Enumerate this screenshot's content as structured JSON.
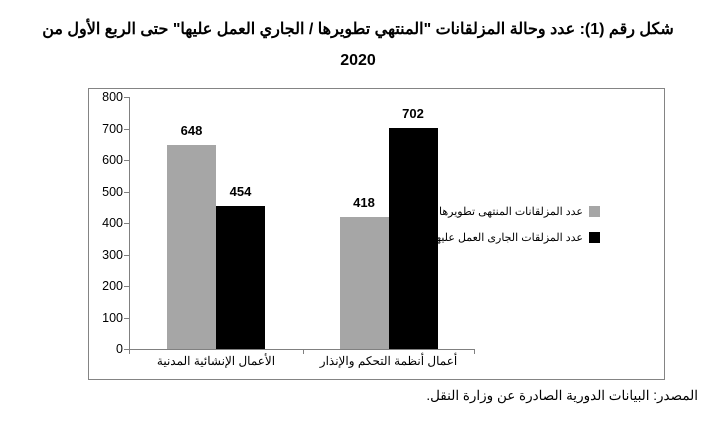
{
  "title": {
    "line1": "شكل رقم (1): عدد وحالة المزلقانات \"المنتهي تطويرها / الجاري العمل عليها\" حتى الربع الأول من",
    "line2": "2020"
  },
  "source": "المصدر: البيانات الدورية الصادرة عن وزارة النقل.",
  "colors": {
    "bar_gray": "#A6A6A6",
    "bar_black": "#000000",
    "axis": "#808080",
    "chart_border": "#848484",
    "text": "#000000"
  },
  "chart_data": {
    "type": "bar",
    "title": "شكل رقم (1): عدد وحالة المزلقانات \"المنتهي تطويرها / الجاري العمل عليها\" حتى الربع الأول من 2020",
    "categories": [
      "الأعمال الإنشائية المدنية",
      "أعمال أنظمة التحكم والإنذار"
    ],
    "series": [
      {
        "name": "عدد المزلقانات المنتهى تطويرها",
        "color": "#A6A6A6",
        "values": [
          648,
          418
        ]
      },
      {
        "name": "عدد المزلقات الجارى العمل عليها",
        "color": "#000000",
        "values": [
          454,
          702
        ]
      }
    ],
    "ylim": [
      0,
      800
    ],
    "ytick_step": 100,
    "yticks": [
      0,
      100,
      200,
      300,
      400,
      500,
      600,
      700,
      800
    ],
    "grid": false,
    "data_labels": true,
    "legend_position": "right",
    "xlabel": "",
    "ylabel": ""
  }
}
